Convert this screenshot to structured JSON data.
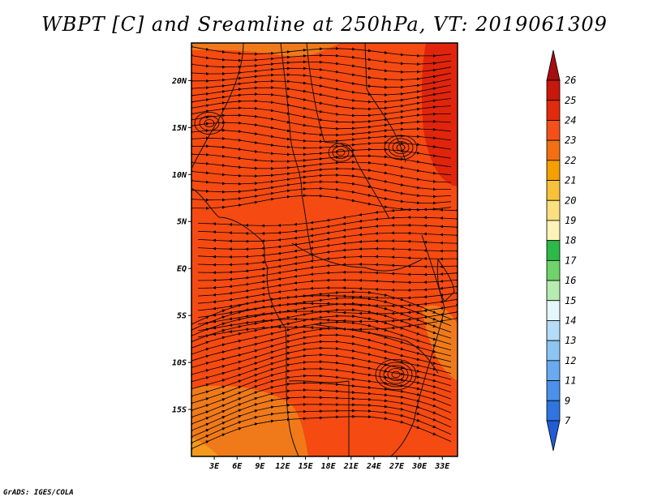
{
  "title": "WBPT [C] and Sreamline at 250hPa, VT: 2019061309",
  "credit": "GrADS: IGES/COLA",
  "map": {
    "lon_range": [
      0,
      35
    ],
    "lat_range": [
      -20,
      24
    ],
    "lat_ticks": [
      {
        "value": 20,
        "label": "20N"
      },
      {
        "value": 15,
        "label": "15N"
      },
      {
        "value": 10,
        "label": "10N"
      },
      {
        "value": 5,
        "label": "5N"
      },
      {
        "value": 0,
        "label": "EQ"
      },
      {
        "value": -5,
        "label": "5S"
      },
      {
        "value": -10,
        "label": "10S"
      },
      {
        "value": -15,
        "label": "15S"
      }
    ],
    "lon_ticks": [
      {
        "value": 3,
        "label": "3E"
      },
      {
        "value": 6,
        "label": "6E"
      },
      {
        "value": 9,
        "label": "9E"
      },
      {
        "value": 12,
        "label": "12E"
      },
      {
        "value": 15,
        "label": "15E"
      },
      {
        "value": 18,
        "label": "18E"
      },
      {
        "value": 21,
        "label": "21E"
      },
      {
        "value": 24,
        "label": "24E"
      },
      {
        "value": 27,
        "label": "27E"
      },
      {
        "value": 30,
        "label": "30E"
      },
      {
        "value": 33,
        "label": "33E"
      }
    ],
    "field_colors": {
      "base": "#f54a12",
      "warm": "#e0250c",
      "cool": "#f07a1a",
      "coolest": "#f39a1e"
    }
  },
  "colorbar": {
    "levels": [
      {
        "label": "26",
        "color": "#a50f0f"
      },
      {
        "label": "25",
        "color": "#c8170c"
      },
      {
        "label": "24",
        "color": "#e22a0d"
      },
      {
        "label": "23",
        "color": "#f5501a"
      },
      {
        "label": "22",
        "color": "#f27012"
      },
      {
        "label": "21",
        "color": "#f5a000"
      },
      {
        "label": "20",
        "color": "#f7c13a"
      },
      {
        "label": "19",
        "color": "#fbe07e"
      },
      {
        "label": "18",
        "color": "#fdf3b8"
      },
      {
        "label": "17",
        "color": "#2db84a"
      },
      {
        "label": "16",
        "color": "#6fd36a"
      },
      {
        "label": "15",
        "color": "#b6ebb1"
      },
      {
        "label": "14",
        "color": "#e4f7fb"
      },
      {
        "label": "13",
        "color": "#b5dcf8"
      },
      {
        "label": "12",
        "color": "#8ec4f4"
      },
      {
        "label": "11",
        "color": "#6aaaf0"
      },
      {
        "label": "9",
        "color": "#4b90ea"
      },
      {
        "label": "7",
        "color": "#2f74e0"
      },
      {
        "label": "",
        "color": "#1f5cd6"
      }
    ]
  }
}
